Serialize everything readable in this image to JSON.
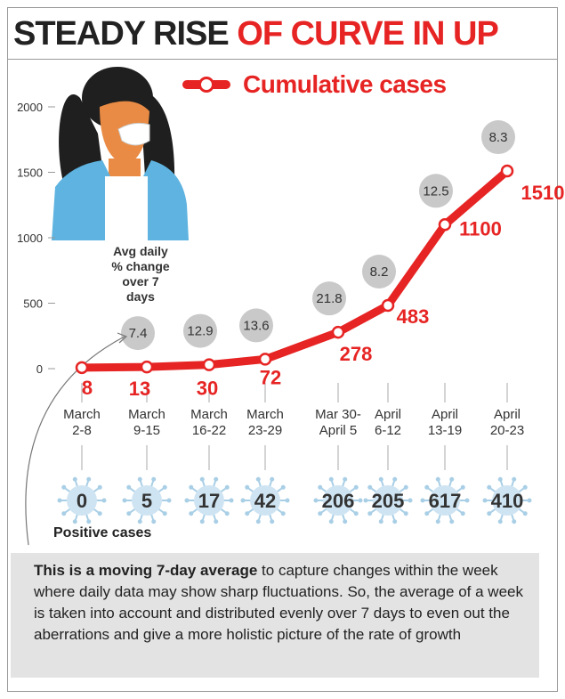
{
  "header": {
    "title_part1": "STEADY RISE ",
    "title_part2": "OF CURVE IN UP",
    "title_color_1": "#222222",
    "title_color_2": "#e62423"
  },
  "legend": {
    "label": "Cumulative cases",
    "color": "#e62423"
  },
  "avg_note": "Avg daily\n% change\nover 7\ndays",
  "positive_label": "Positive cases",
  "footnote": {
    "bold": "This is a moving 7-day average",
    "rest": " to capture changes within the week where daily data may show sharp fluctuations. So, the average of a week is taken into account and distributed evenly over 7 days to even out the aberrations and give a more holistic picture of the rate of growth"
  },
  "chart_data": {
    "type": "line",
    "title": "STEADY RISE OF CURVE IN UP",
    "categories": [
      "March\n2-8",
      "March\n9-15",
      "March\n16-22",
      "March\n23-29",
      "Mar 30-\nApril 5",
      "April\n6-12",
      "April\n13-19",
      "April\n20-23"
    ],
    "series": [
      {
        "name": "Cumulative cases",
        "values": [
          8,
          13,
          30,
          72,
          278,
          483,
          1100,
          1510
        ],
        "color": "#e62423"
      }
    ],
    "avg_daily_pct_change": [
      "",
      "7.4",
      "12.9",
      "13.6",
      "21.8",
      "8.2",
      "12.5",
      "8.3"
    ],
    "positive_cases": [
      0,
      5,
      17,
      42,
      206,
      205,
      617,
      410
    ],
    "yticks": [
      0,
      500,
      1000,
      1500,
      2000
    ],
    "ylim": [
      0,
      2000
    ],
    "grid": false
  }
}
